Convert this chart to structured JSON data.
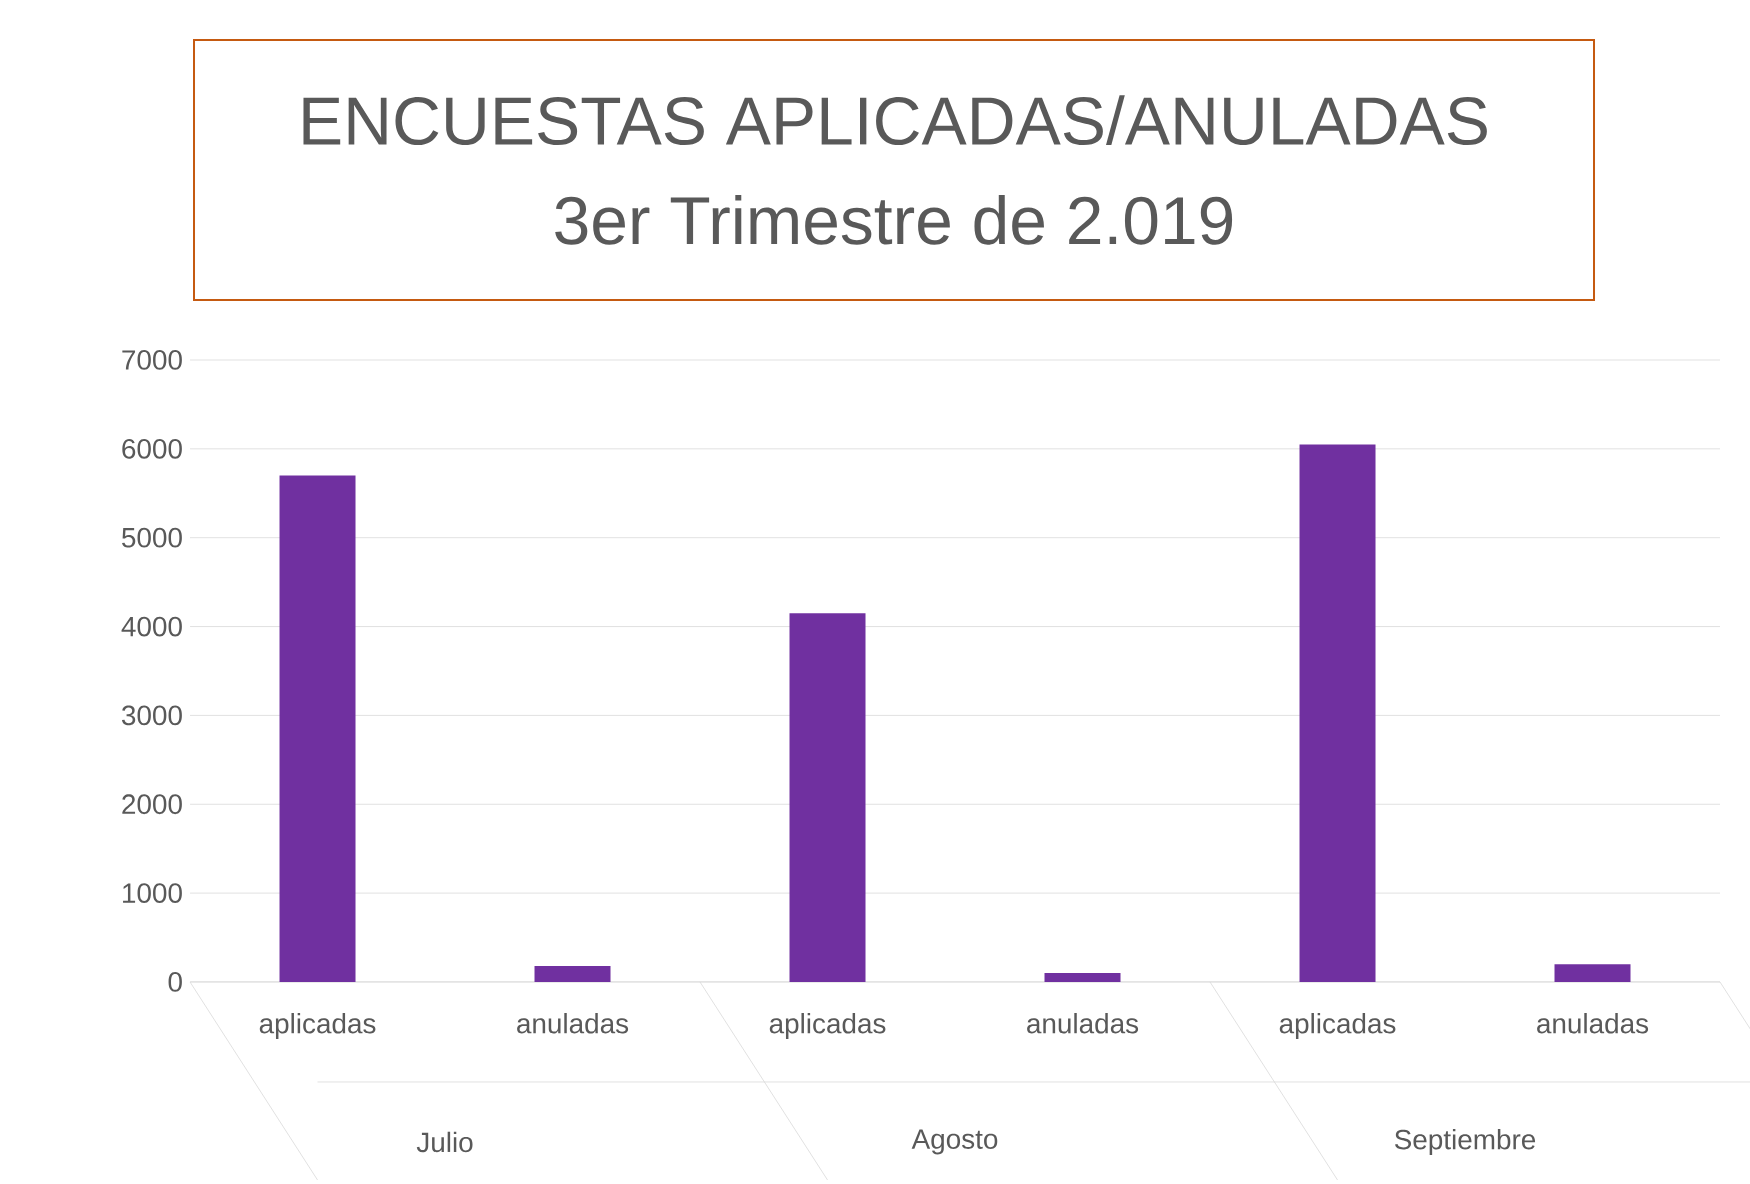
{
  "chart_data": {
    "type": "bar",
    "title": "ENCUESTAS APLICADAS/ANULADAS",
    "subtitle": "3er Trimestre de 2.019",
    "categories": [
      "aplicadas",
      "anuladas",
      "aplicadas",
      "anuladas",
      "aplicadas",
      "anuladas"
    ],
    "values": [
      5700,
      180,
      4150,
      100,
      6050,
      200
    ],
    "color": "#7030a0",
    "ylim": [
      0,
      7000
    ],
    "yticks": [
      0,
      1000,
      2000,
      3000,
      4000,
      5000,
      6000,
      7000
    ],
    "grid": "y",
    "annotations": [
      "Julio",
      "Agosto",
      "Septiembre"
    ]
  }
}
